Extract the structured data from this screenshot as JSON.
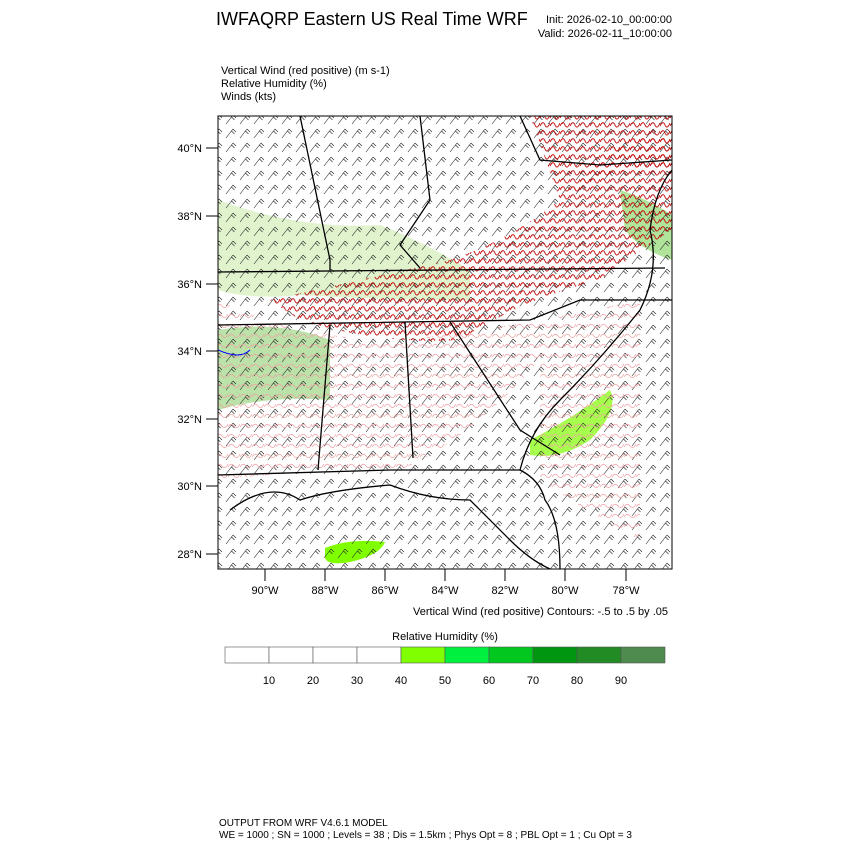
{
  "header": {
    "title": "IWFAQRP Eastern US Real Time WRF",
    "init": "Init: 2026-02-10_00:00:00",
    "valid": "Valid: 2026-02-11_10:00:00"
  },
  "fields": [
    "Vertical Wind (red positive)   (m s-1)",
    "Relative Humidity   (%)",
    "Winds   (kts)"
  ],
  "map": {
    "lat_labels": [
      "40°N",
      "38°N",
      "36°N",
      "34°N",
      "32°N",
      "30°N",
      "28°N"
    ],
    "lon_labels": [
      "90°W",
      "88°W",
      "86°W",
      "84°W",
      "82°W",
      "80°W",
      "78°W"
    ],
    "contour_note": "Vertical Wind (red positive) Contours: -.5 to .5 by .05"
  },
  "colorbar": {
    "title": "Relative Humidity  (%)",
    "levels": [
      10,
      20,
      30,
      40,
      50,
      60,
      70,
      80,
      90
    ],
    "colors": [
      "#ffffff",
      "#ffffff",
      "#ffffff",
      "#ffffff",
      "#80ff00",
      "#00f040",
      "#00c81e",
      "#00960f",
      "#238b23",
      "#4f8a4f"
    ]
  },
  "footer": {
    "line1": "OUTPUT FROM WRF V4.6.1 MODEL",
    "line2": "WE = 1000 ; SN = 1000 ; Levels = 38 ; Dis = 1.5km ; Phys Opt = 8 ; PBL Opt = 1 ; Cu Opt = 3"
  }
}
